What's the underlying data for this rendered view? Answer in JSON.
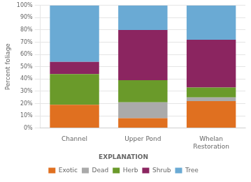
{
  "chart_data": {
    "type": "bar",
    "stacked": true,
    "categories": [
      "Channel",
      "Upper Pond",
      "Whelan\nRestoration"
    ],
    "series": [
      {
        "name": "Exotic",
        "color": "#E07020",
        "values": [
          19,
          8,
          22
        ]
      },
      {
        "name": "Dead",
        "color": "#AAAAAA",
        "values": [
          0,
          13,
          3
        ]
      },
      {
        "name": "Herb",
        "color": "#6A9A2A",
        "values": [
          25,
          18,
          8
        ]
      },
      {
        "name": "Shrub",
        "color": "#8B2560",
        "values": [
          10,
          41,
          39
        ]
      },
      {
        "name": "Tree",
        "color": "#6AAAD4",
        "values": [
          46,
          20,
          28
        ]
      }
    ],
    "y_label": "Percent foliage",
    "legend_title": "EXPLANATION",
    "ylim": [
      0,
      100
    ],
    "yticks": [
      {
        "value": 0,
        "label": "0%"
      },
      {
        "value": 10,
        "label": "10%"
      },
      {
        "value": 20,
        "label": "20%"
      },
      {
        "value": 30,
        "label": "30%"
      },
      {
        "value": 40,
        "label": "40%"
      },
      {
        "value": 50,
        "label": "50%"
      },
      {
        "value": 60,
        "label": "60%"
      },
      {
        "value": 70,
        "label": "70%"
      },
      {
        "value": 80,
        "label": "80%"
      },
      {
        "value": 90,
        "label": "90%"
      },
      {
        "value": 100,
        "label": "100%"
      }
    ],
    "grid": true,
    "legend": "bottom"
  }
}
